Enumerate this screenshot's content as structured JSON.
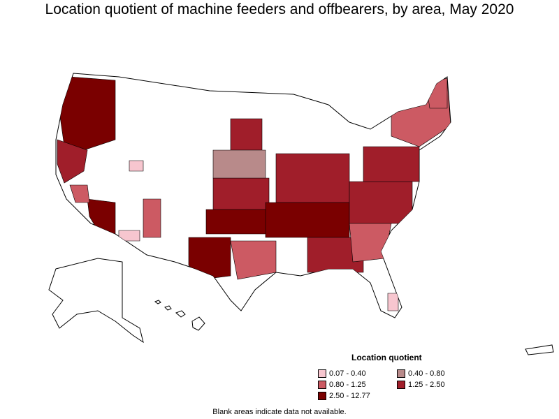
{
  "title": "Location quotient of machine feeders and offbearers, by area, May 2020",
  "legend": {
    "title": "Location quotient",
    "items": [
      {
        "label": "0.07 - 0.40",
        "color": "#f7c6cf"
      },
      {
        "label": "0.40 - 0.80",
        "color": "#b88a8a"
      },
      {
        "label": "0.80 - 1.25",
        "color": "#cc5a63"
      },
      {
        "label": "1.25 - 2.50",
        "color": "#a01e2a"
      },
      {
        "label": "2.50 - 12.77",
        "color": "#7a0000"
      }
    ]
  },
  "footnote": "Blank areas indicate data not available.",
  "map": {
    "stroke": "#000000",
    "blank_fill": "#ffffff"
  }
}
